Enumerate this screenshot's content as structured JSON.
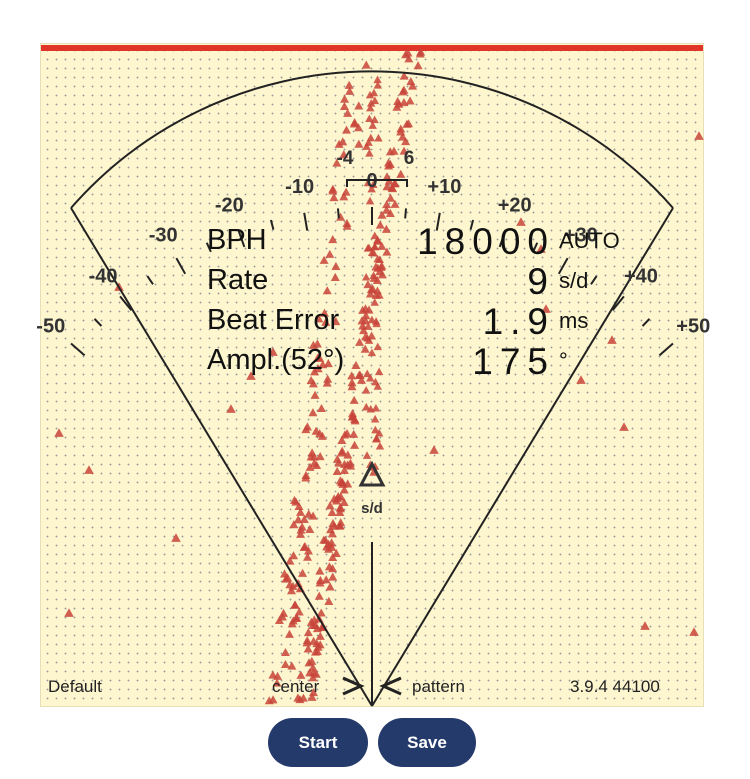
{
  "scale": {
    "ticks": [
      -50,
      -40,
      -30,
      -20,
      -10,
      0,
      10,
      20,
      30,
      40,
      50
    ],
    "tick_labels": [
      "-50",
      "-40",
      "-30",
      "-20",
      "-10",
      "0",
      "+10",
      "+20",
      "+30",
      "+40",
      "+50"
    ],
    "bracket_labels": [
      "-4",
      "6"
    ],
    "bracket_range": [
      -4,
      6
    ],
    "sd_label": "s/d"
  },
  "readout": {
    "bph_label": "BPH",
    "bph_value": "18000",
    "bph_unit": "AUTO",
    "rate_label": "Rate",
    "rate_value": "9",
    "rate_unit": "s/d",
    "beat_label": "Beat Error",
    "beat_value": "1.9",
    "beat_unit": "ms",
    "ampl_label": "Ampl.(52°)",
    "ampl_value": "175",
    "ampl_unit": "°"
  },
  "footer": {
    "left": "Default",
    "center_label": "center",
    "pattern_label": "pattern",
    "version": "3.9.4 44100"
  },
  "buttons": {
    "start": "Start",
    "save": "Save"
  },
  "colors": {
    "panel_bg": "#fdf6cf",
    "top_bar": "#e2352a",
    "marker": "#c8443a",
    "button_bg": "#243a6b"
  }
}
